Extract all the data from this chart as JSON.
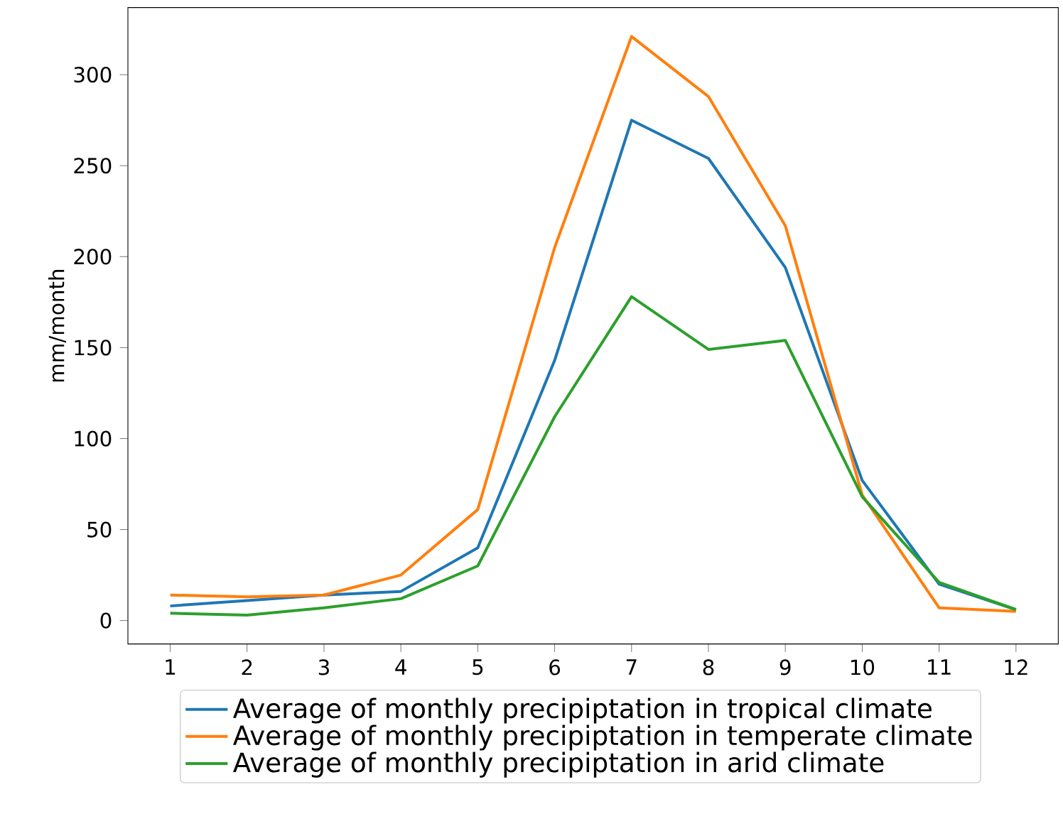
{
  "chart_data": {
    "type": "line",
    "ylabel": "mm/month",
    "x": [
      1,
      2,
      3,
      4,
      5,
      6,
      7,
      8,
      9,
      10,
      11,
      12
    ],
    "series": [
      {
        "name": "Average of monthly precipiptation in tropical climate",
        "color": "#1f77b4",
        "values": [
          8,
          11,
          14,
          16,
          40,
          143,
          275,
          254,
          194,
          77,
          20,
          6
        ]
      },
      {
        "name": "Average of monthly precipiptation in temperate climate",
        "color": "#ff7f0e",
        "values": [
          14,
          13,
          14,
          25,
          61,
          205,
          321,
          288,
          217,
          69,
          7,
          5
        ]
      },
      {
        "name": "Average of monthly precipiptation in arid climate",
        "color": "#2ca02c",
        "values": [
          4,
          3,
          7,
          12,
          30,
          112,
          178,
          149,
          154,
          68,
          21,
          6
        ]
      }
    ],
    "xlim": [
      0.45,
      12.55
    ],
    "ylim": [
      -12.9,
      336.9
    ],
    "xticks": [
      1,
      2,
      3,
      4,
      5,
      6,
      7,
      8,
      9,
      10,
      11,
      12
    ],
    "yticks": [
      0,
      50,
      100,
      150,
      200,
      250,
      300
    ],
    "legend": "bottom",
    "grid": false,
    "marker": "none",
    "line_style": "solid"
  }
}
